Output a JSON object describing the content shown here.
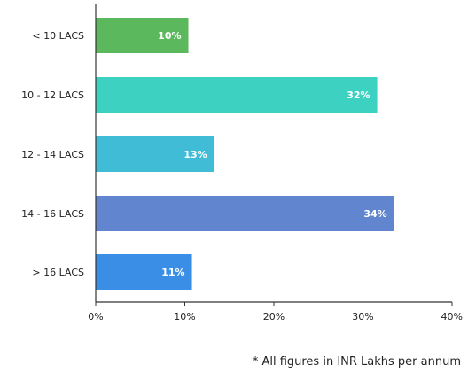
{
  "chart_data": {
    "type": "bar",
    "orientation": "horizontal",
    "categories": [
      "< 10 LACS",
      "10 - 12 LACS",
      "12 - 14 LACS",
      "14 - 16 LACS",
      "> 16 LACS"
    ],
    "values": [
      10.4,
      31.6,
      13.3,
      33.5,
      10.8
    ],
    "value_labels": [
      "10%",
      "32%",
      "13%",
      "34%",
      "11%"
    ],
    "colors": [
      "#5cb85c",
      "#3dd1c2",
      "#40bcd6",
      "#6285cf",
      "#3b8ee5"
    ],
    "xlim": [
      0,
      40
    ],
    "xticks": [
      0,
      10,
      20,
      30,
      40
    ],
    "xtick_labels": [
      "0%",
      "10%",
      "20%",
      "30%",
      "40%"
    ],
    "title": "",
    "xlabel": "",
    "ylabel": "",
    "grid": false,
    "legend": "none"
  },
  "footnote": "* All figures in INR Lakhs per annum"
}
